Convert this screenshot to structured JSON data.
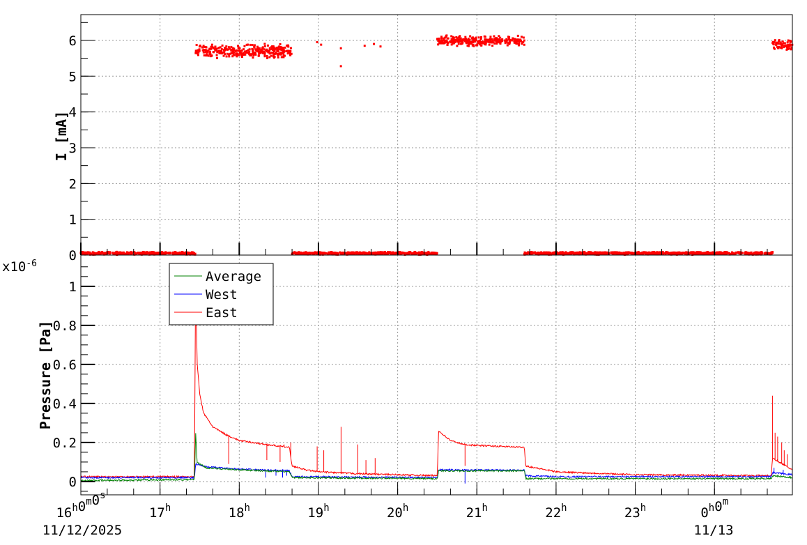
{
  "chart_data": [
    {
      "type": "scatter",
      "ylabel": "I [mA]",
      "ylim": [
        0,
        6.72
      ],
      "xlim": [
        "16:00",
        "00:59"
      ],
      "yticks": [
        "0",
        "1",
        "2",
        "3",
        "4",
        "5",
        "6"
      ],
      "grid": true,
      "color": "#ff0000",
      "segments": [
        {
          "start": "16:00",
          "end": "17:27",
          "value": 0.05,
          "spread": 0.03
        },
        {
          "start": "17:27",
          "end": "18:40",
          "value": 5.7,
          "spread": 0.15
        },
        {
          "start": "18:40",
          "end": "20:30",
          "value": 0.05,
          "spread": 0.03
        },
        {
          "start": "20:30",
          "end": "21:36",
          "value": 5.98,
          "spread": 0.12
        },
        {
          "start": "21:36",
          "end": "00:44",
          "value": 0.05,
          "spread": 0.03
        },
        {
          "start": "00:44",
          "end": "00:59",
          "value": 5.88,
          "spread": 0.12
        }
      ],
      "points": [
        [
          "18:59",
          5.95
        ],
        [
          "19:02",
          5.88
        ],
        [
          "19:17",
          5.28
        ],
        [
          "19:17",
          5.78
        ],
        [
          "19:35",
          5.85
        ],
        [
          "19:42",
          5.9
        ],
        [
          "19:47",
          5.83
        ]
      ]
    },
    {
      "type": "line",
      "ylabel": "Pressure [Pa]",
      "yscale_label": "x10^-6",
      "ylim": [
        -0.068,
        1.16
      ],
      "xlim": [
        "16:00",
        "00:59"
      ],
      "yticks": [
        "0",
        "0.2",
        "0.4",
        "0.6",
        "0.8",
        "1"
      ],
      "xticks": [
        "16h0m0s",
        "17h",
        "18h",
        "19h",
        "20h",
        "21h",
        "22h",
        "23h",
        "0h0m"
      ],
      "date_labels": {
        "start": "11/12/2025",
        "midnight": "11/13"
      },
      "grid": true,
      "legend_position": "top-left",
      "series": [
        {
          "name": "Average",
          "color": "#008000",
          "points": [
            [
              "16:00",
              0.005
            ],
            [
              "17:26",
              0.01
            ],
            [
              "17:27",
              0.25
            ],
            [
              "17:28",
              0.1
            ],
            [
              "17:35",
              0.07
            ],
            [
              "18:00",
              0.06
            ],
            [
              "18:38",
              0.05
            ],
            [
              "18:40",
              0.02
            ],
            [
              "20:30",
              0.015
            ],
            [
              "20:31",
              0.055
            ],
            [
              "21:36",
              0.055
            ],
            [
              "21:37",
              0.015
            ],
            [
              "00:43",
              0.015
            ],
            [
              "00:44",
              0.03
            ],
            [
              "00:59",
              0.02
            ]
          ],
          "spikes": []
        },
        {
          "name": "West",
          "color": "#0000ff",
          "points": [
            [
              "16:00",
              0.02
            ],
            [
              "17:26",
              0.02
            ],
            [
              "17:27",
              0.09
            ],
            [
              "17:35",
              0.075
            ],
            [
              "18:00",
              0.063
            ],
            [
              "18:38",
              0.055
            ],
            [
              "18:40",
              0.025
            ],
            [
              "20:30",
              0.02
            ],
            [
              "20:31",
              0.06
            ],
            [
              "21:36",
              0.058
            ],
            [
              "21:37",
              0.03
            ],
            [
              "22:00",
              0.025
            ],
            [
              "00:43",
              0.025
            ],
            [
              "00:44",
              0.045
            ],
            [
              "00:59",
              0.035
            ]
          ],
          "spikes": [
            [
              "18:20",
              0.02
            ],
            [
              "18:28",
              0.03
            ],
            [
              "18:33",
              0.02
            ],
            [
              "18:36",
              0.03
            ],
            [
              "20:51",
              -0.01
            ],
            [
              "00:45",
              0.07
            ],
            [
              "00:52",
              0.06
            ]
          ]
        },
        {
          "name": "East",
          "color": "#ff0000",
          "points": [
            [
              "16:00",
              0.025
            ],
            [
              "17:26",
              0.025
            ],
            [
              "17:27",
              1.08
            ],
            [
              "17:28",
              0.62
            ],
            [
              "17:30",
              0.45
            ],
            [
              "17:33",
              0.35
            ],
            [
              "17:40",
              0.28
            ],
            [
              "17:50",
              0.24
            ],
            [
              "18:00",
              0.21
            ],
            [
              "18:20",
              0.19
            ],
            [
              "18:38",
              0.175
            ],
            [
              "18:40",
              0.08
            ],
            [
              "18:50",
              0.06
            ],
            [
              "19:00",
              0.05
            ],
            [
              "19:30",
              0.04
            ],
            [
              "20:00",
              0.035
            ],
            [
              "20:30",
              0.03
            ],
            [
              "20:31",
              0.26
            ],
            [
              "20:40",
              0.21
            ],
            [
              "20:50",
              0.19
            ],
            [
              "21:00",
              0.185
            ],
            [
              "21:36",
              0.175
            ],
            [
              "21:37",
              0.08
            ],
            [
              "22:00",
              0.05
            ],
            [
              "23:00",
              0.035
            ],
            [
              "00:43",
              0.03
            ],
            [
              "00:44",
              0.12
            ],
            [
              "00:59",
              0.06
            ]
          ],
          "spikes": [
            [
              "17:52",
              0.09
            ],
            [
              "18:20",
              0.19
            ],
            [
              "18:21",
              0.11
            ],
            [
              "18:28",
              0.18
            ],
            [
              "18:31",
              0.1
            ],
            [
              "18:34",
              0.19
            ],
            [
              "18:39",
              0.2
            ],
            [
              "18:59",
              0.18
            ],
            [
              "19:04",
              0.16
            ],
            [
              "19:17",
              0.28
            ],
            [
              "19:30",
              0.19
            ],
            [
              "19:36",
              0.11
            ],
            [
              "19:43",
              0.12
            ],
            [
              "20:51",
              0.08
            ],
            [
              "00:44",
              0.44
            ],
            [
              "00:46",
              0.25
            ],
            [
              "00:48",
              0.23
            ],
            [
              "00:51",
              0.2
            ],
            [
              "00:53",
              0.16
            ],
            [
              "00:55",
              0.14
            ]
          ]
        }
      ]
    }
  ]
}
